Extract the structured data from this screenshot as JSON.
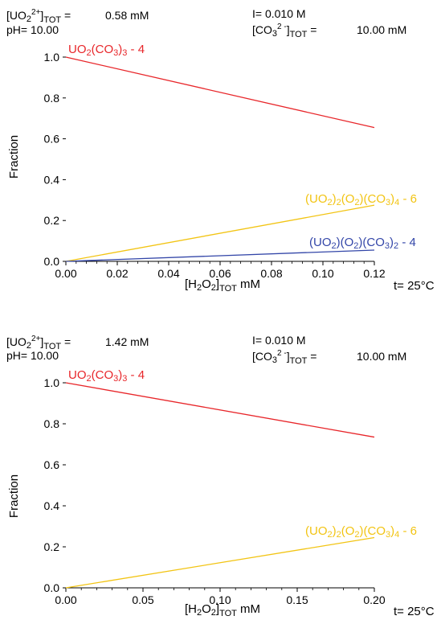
{
  "chart_data": [
    {
      "type": "line",
      "header": {
        "u_conc_label": "[UO2 2+]TOT =",
        "u_conc_value": "0.58 mM",
        "ph": "pH= 10.00",
        "ionic": "I= 0.010 M",
        "co3_label": "[CO3 2 -]TOT =",
        "co3_value": "10.00 mM"
      },
      "ylabel": "Fraction",
      "xlabel": "[H2O2]TOT",
      "xlabel_unit": "mM",
      "temperature": "t= 25°C",
      "xlim": [
        0,
        0.12
      ],
      "ylim": [
        0,
        1.0
      ],
      "xticks": [
        "0.00",
        "0.02",
        "0.04",
        "0.06",
        "0.08",
        "0.10",
        "0.12"
      ],
      "yticks": [
        "0.0",
        "0.2",
        "0.4",
        "0.6",
        "0.8",
        "1.0"
      ],
      "series": [
        {
          "name": "UO2(CO3)3 - 4",
          "color": "#e8262a",
          "x": [
            0,
            0.12
          ],
          "y": [
            1.0,
            0.655
          ]
        },
        {
          "name": "(UO2)2(O2)(CO3)4 - 6",
          "color": "#f2c413",
          "x": [
            0,
            0.12
          ],
          "y": [
            0.0,
            0.275
          ]
        },
        {
          "name": "(UO2)(O2)(CO3)2 - 4",
          "color": "#3346a8",
          "x": [
            0,
            0.12
          ],
          "y": [
            0.0,
            0.055
          ]
        }
      ]
    },
    {
      "type": "line",
      "header": {
        "u_conc_label": "[UO2 2+]TOT =",
        "u_conc_value": "1.42 mM",
        "ph": "pH= 10.00",
        "ionic": "I= 0.010 M",
        "co3_label": "[CO3 2 -]TOT =",
        "co3_value": "10.00 mM"
      },
      "ylabel": "Fraction",
      "xlabel": "[H2O2]TOT",
      "xlabel_unit": "mM",
      "temperature": "t= 25°C",
      "xlim": [
        0,
        0.2
      ],
      "ylim": [
        0,
        1.0
      ],
      "xticks": [
        "0.00",
        "0.05",
        "0.10",
        "0.15",
        "0.20"
      ],
      "yticks": [
        "0.0",
        "0.2",
        "0.4",
        "0.6",
        "0.8",
        "1.0"
      ],
      "series": [
        {
          "name": "UO2(CO3)3 - 4",
          "color": "#e8262a",
          "x": [
            0,
            0.2
          ],
          "y": [
            1.0,
            0.735
          ]
        },
        {
          "name": "(UO2)2(O2)(CO3)4 - 6",
          "color": "#f2c413",
          "x": [
            0,
            0.2
          ],
          "y": [
            0.0,
            0.245
          ]
        }
      ]
    }
  ]
}
